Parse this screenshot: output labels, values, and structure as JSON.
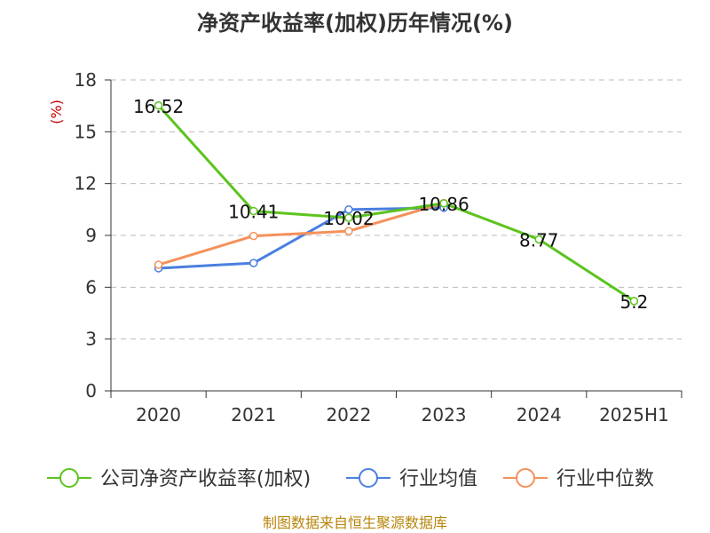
{
  "chart_data": {
    "type": "line",
    "title": "净资产收益率(加权)历年情况(%)",
    "ylabel": "(%)",
    "xlabel": "",
    "categories": [
      "2020",
      "2021",
      "2022",
      "2023",
      "2024",
      "2025H1"
    ],
    "ylim": [
      0,
      18
    ],
    "yticks": [
      0,
      3,
      6,
      9,
      12,
      15,
      18
    ],
    "grid": true,
    "legend_position": "bottom",
    "series": [
      {
        "name": "公司净资产收益率(加权)",
        "color": "#5cc41e",
        "values": [
          16.52,
          10.41,
          10.02,
          10.86,
          8.77,
          5.2
        ],
        "labels": [
          "16.52",
          "10.41",
          "10.02",
          "10.86",
          "8.77",
          "5.2"
        ]
      },
      {
        "name": "行业均值",
        "color": "#4a7fe0",
        "values": [
          7.1,
          7.4,
          10.5,
          10.6,
          null,
          null
        ]
      },
      {
        "name": "行业中位数",
        "color": "#f5915a",
        "values": [
          7.3,
          8.97,
          9.25,
          10.87,
          null,
          null
        ]
      }
    ]
  },
  "footer": {
    "source": "制图数据来自恒生聚源数据库"
  }
}
